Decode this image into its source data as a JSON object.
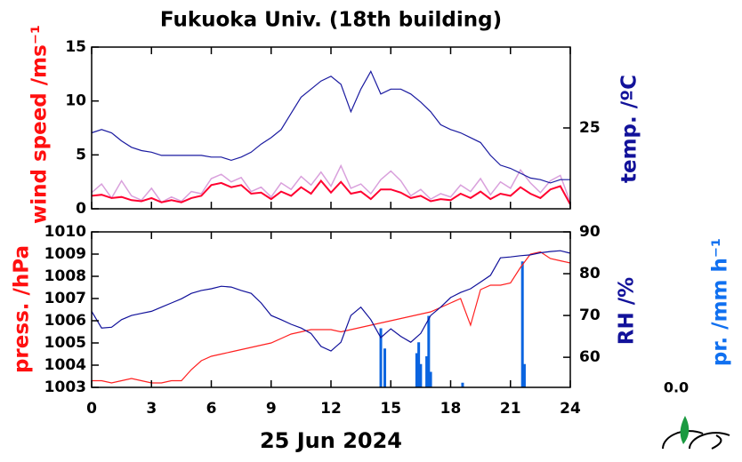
{
  "chart_data": [
    {
      "type": "line",
      "title": "Fukuoka Univ. (18th building)",
      "ylabel": "wind speed /ms⁻¹",
      "y2label": "temp. /ºC",
      "x": [
        0,
        0.5,
        1,
        1.5,
        2,
        2.5,
        3,
        3.5,
        4,
        4.5,
        5,
        5.5,
        6,
        6.5,
        7,
        7.5,
        8,
        8.5,
        9,
        9.5,
        10,
        10.5,
        11,
        11.5,
        12,
        12.5,
        13,
        13.5,
        14,
        14.5,
        15,
        15.5,
        16,
        16.5,
        17,
        17.5,
        18,
        18.5,
        19,
        19.5,
        20,
        20.5,
        21,
        21.5,
        22,
        22.5,
        23,
        23.5,
        24
      ],
      "xlim": [
        0,
        24
      ],
      "xticks": [
        0,
        3,
        6,
        9,
        12,
        15,
        18,
        21,
        24
      ],
      "ylim": [
        0,
        15
      ],
      "yticks": [
        0,
        5,
        10,
        15
      ],
      "y2lim": [
        20,
        30
      ],
      "y2ticks": [
        25
      ],
      "ylabel_color": "#ff1010",
      "y2label_color": "#12129a",
      "series": [
        {
          "color": "#d9a0dc",
          "axis": "y",
          "values": [
            1.5,
            2.3,
            1.0,
            2.6,
            1.2,
            0.8,
            1.9,
            0.6,
            1.1,
            0.7,
            1.6,
            1.4,
            2.8,
            3.2,
            2.5,
            2.9,
            1.6,
            2.0,
            1.1,
            2.4,
            1.8,
            3.0,
            2.2,
            3.4,
            2.1,
            4.0,
            1.9,
            2.3,
            1.4,
            2.7,
            3.5,
            2.6,
            1.2,
            1.8,
            0.9,
            1.4,
            1.1,
            2.2,
            1.6,
            2.8,
            1.3,
            2.5,
            1.9,
            3.6,
            2.4,
            1.5,
            2.6,
            3.1,
            0.6
          ]
        },
        {
          "color": "#ff0030",
          "axis": "y",
          "values": [
            1.2,
            1.3,
            1.0,
            1.1,
            0.8,
            0.7,
            1.0,
            0.6,
            0.8,
            0.6,
            1.0,
            1.2,
            2.2,
            2.4,
            2.0,
            2.2,
            1.4,
            1.5,
            0.9,
            1.6,
            1.2,
            2.0,
            1.4,
            2.6,
            1.5,
            2.5,
            1.4,
            1.6,
            0.9,
            1.8,
            1.8,
            1.5,
            1.0,
            1.2,
            0.7,
            0.9,
            0.8,
            1.4,
            1.0,
            1.6,
            0.9,
            1.4,
            1.2,
            2.0,
            1.4,
            1.0,
            1.8,
            2.1,
            0.4
          ]
        },
        {
          "color": "#1a1aa0",
          "axis": "y2",
          "values": [
            24.7,
            24.9,
            24.7,
            24.2,
            23.8,
            23.6,
            23.5,
            23.3,
            23.3,
            23.3,
            23.3,
            23.3,
            23.2,
            23.2,
            23.0,
            23.2,
            23.5,
            24.0,
            24.4,
            24.9,
            25.9,
            26.9,
            27.4,
            27.9,
            28.2,
            27.7,
            26.0,
            27.4,
            28.5,
            27.1,
            27.4,
            27.4,
            27.1,
            26.6,
            26.0,
            25.2,
            24.9,
            24.7,
            24.4,
            24.1,
            23.3,
            22.7,
            22.5,
            22.2,
            21.9,
            21.8,
            21.6,
            21.8,
            21.8
          ]
        }
      ]
    },
    {
      "type": "line",
      "xlabel": "25 Jun 2024",
      "ylabel": "press. /hPa",
      "y2label": "RH /%",
      "y3label": "pr. /mm h⁻¹",
      "y3_text": "0.0",
      "x": [
        0,
        0.5,
        1,
        1.5,
        2,
        2.5,
        3,
        3.5,
        4,
        4.5,
        5,
        5.5,
        6,
        6.5,
        7,
        7.5,
        8,
        8.5,
        9,
        9.5,
        10,
        10.5,
        11,
        11.5,
        12,
        12.5,
        13,
        13.5,
        14,
        14.5,
        15,
        15.5,
        16,
        16.5,
        17,
        17.5,
        18,
        18.5,
        19,
        19.5,
        20,
        20.5,
        21,
        21.5,
        22,
        22.5,
        23,
        23.5,
        24
      ],
      "xlim": [
        0,
        24
      ],
      "xticks": [
        0,
        3,
        6,
        9,
        12,
        15,
        18,
        21,
        24
      ],
      "ylim": [
        1003,
        1010
      ],
      "yticks": [
        1003,
        1004,
        1005,
        1006,
        1007,
        1008,
        1009,
        1010
      ],
      "y2lim": [
        52.8,
        90
      ],
      "y2ticks": [
        60,
        70,
        80,
        90
      ],
      "y3lim": [
        0,
        10
      ],
      "ylabel_color": "#ff1010",
      "y2label_color": "#12129a",
      "y3label_color": "#1070f0",
      "series": [
        {
          "color": "#ff2020",
          "axis": "y",
          "values": [
            1003.3,
            1003.3,
            1003.2,
            1003.3,
            1003.4,
            1003.3,
            1003.2,
            1003.2,
            1003.3,
            1003.3,
            1003.8,
            1004.2,
            1004.4,
            1004.5,
            1004.6,
            1004.7,
            1004.8,
            1004.9,
            1005.0,
            1005.2,
            1005.4,
            1005.5,
            1005.6,
            1005.6,
            1005.6,
            1005.5,
            1005.6,
            1005.7,
            1005.8,
            1005.9,
            1006.0,
            1006.1,
            1006.2,
            1006.3,
            1006.4,
            1006.6,
            1006.8,
            1007.0,
            1005.8,
            1007.4,
            1007.6,
            1007.6,
            1007.7,
            1008.4,
            1009.0,
            1009.1,
            1008.8,
            1008.7,
            1008.6
          ]
        },
        {
          "color": "#10109a",
          "axis": "y2",
          "values": [
            71,
            67,
            67.2,
            69,
            70,
            70.5,
            71,
            72,
            73,
            74,
            75.3,
            76,
            76.4,
            77,
            76.8,
            76,
            75.3,
            73,
            70,
            69,
            67.9,
            67,
            65.7,
            62.6,
            61.5,
            63.6,
            70,
            72,
            69,
            64.7,
            66.8,
            65,
            63.6,
            65.7,
            70,
            72,
            74.3,
            75.5,
            76.4,
            78,
            79.6,
            83.8,
            84,
            84.3,
            84.5,
            85,
            85.3,
            85.5,
            84.9
          ]
        }
      ],
      "bars": {
        "color": "#0a64e0",
        "axis": "y3",
        "x": [
          14.5,
          14.7,
          16.3,
          16.4,
          16.5,
          16.8,
          16.9,
          17.0,
          18.6,
          21.6,
          21.7
        ],
        "values": [
          3.8,
          2.5,
          2.2,
          2.9,
          1.5,
          2.0,
          4.6,
          1.0,
          0.3,
          8.1,
          1.5
        ]
      }
    }
  ]
}
